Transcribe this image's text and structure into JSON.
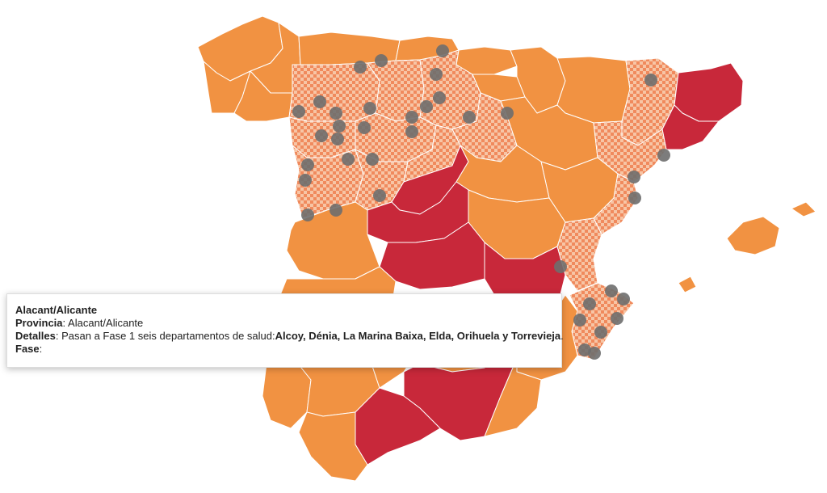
{
  "colors": {
    "phase0": "#f19242",
    "phase1": "#c8283a",
    "check_a": "#f08a5d",
    "check_b": "#f7c5a5",
    "dot": "#6e6e6e",
    "border": "#ffffff",
    "selected_outline": "#000000"
  },
  "legend_meaning": {
    "orange": "región en fase 0",
    "red": "región en fase 1",
    "checkered": "región con zonas en fase 1",
    "grey-dot": "área de salud en fase 1"
  },
  "tooltip": {
    "region_name": "Alacant/Alicante",
    "provincia_label": "Provincia",
    "provincia_value": "Alacant/Alicante",
    "detalles_label": "Detalles",
    "detalles_text": "Pasan a Fase 1 seis departamentos de salud:",
    "detalles_list": "Alcoy, Dénia, La Marina Baixa, Elda, Orihuela y Torrevieja",
    "detalles_end": ".",
    "fase_label": "Fase",
    "fase_value": ""
  }
}
